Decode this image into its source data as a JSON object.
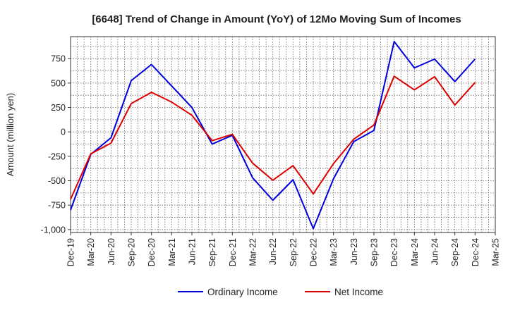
{
  "chart_data": {
    "type": "line",
    "title": "[6648]  Trend of Change in Amount (YoY) of 12Mo Moving Sum of Incomes",
    "xlabel": "",
    "ylabel": "Amount (million yen)",
    "ylim": [
      -1030,
      975
    ],
    "yticks": [
      -1000,
      -750,
      -500,
      -250,
      0,
      250,
      500,
      750
    ],
    "ytick_labels": [
      "-1,000",
      "-750",
      "-500",
      "-250",
      "0",
      "250",
      "500",
      "750"
    ],
    "categories": [
      "Dec-19",
      "Mar-20",
      "Jun-20",
      "Sep-20",
      "Dec-20",
      "Mar-21",
      "Jun-21",
      "Sep-21",
      "Dec-21",
      "Mar-22",
      "Jun-22",
      "Sep-22",
      "Dec-22",
      "Mar-23",
      "Jun-23",
      "Sep-23",
      "Dec-23",
      "Mar-24",
      "Jun-24",
      "Sep-24",
      "Dec-24",
      "Mar-25"
    ],
    "grid": true,
    "legend_position": "bottom",
    "series": [
      {
        "name": "Ordinary Income",
        "color": "#0000dd",
        "values": [
          -800,
          -230,
          -60,
          525,
          690,
          470,
          250,
          -125,
          -35,
          -470,
          -700,
          -490,
          -990,
          -480,
          -100,
          15,
          925,
          655,
          745,
          515,
          745,
          null
        ]
      },
      {
        "name": "Net Income",
        "color": "#dd0000",
        "values": [
          -690,
          -225,
          -115,
          290,
          405,
          305,
          170,
          -90,
          -25,
          -320,
          -495,
          -345,
          -635,
          -325,
          -75,
          70,
          570,
          430,
          565,
          275,
          505,
          null
        ]
      }
    ]
  }
}
